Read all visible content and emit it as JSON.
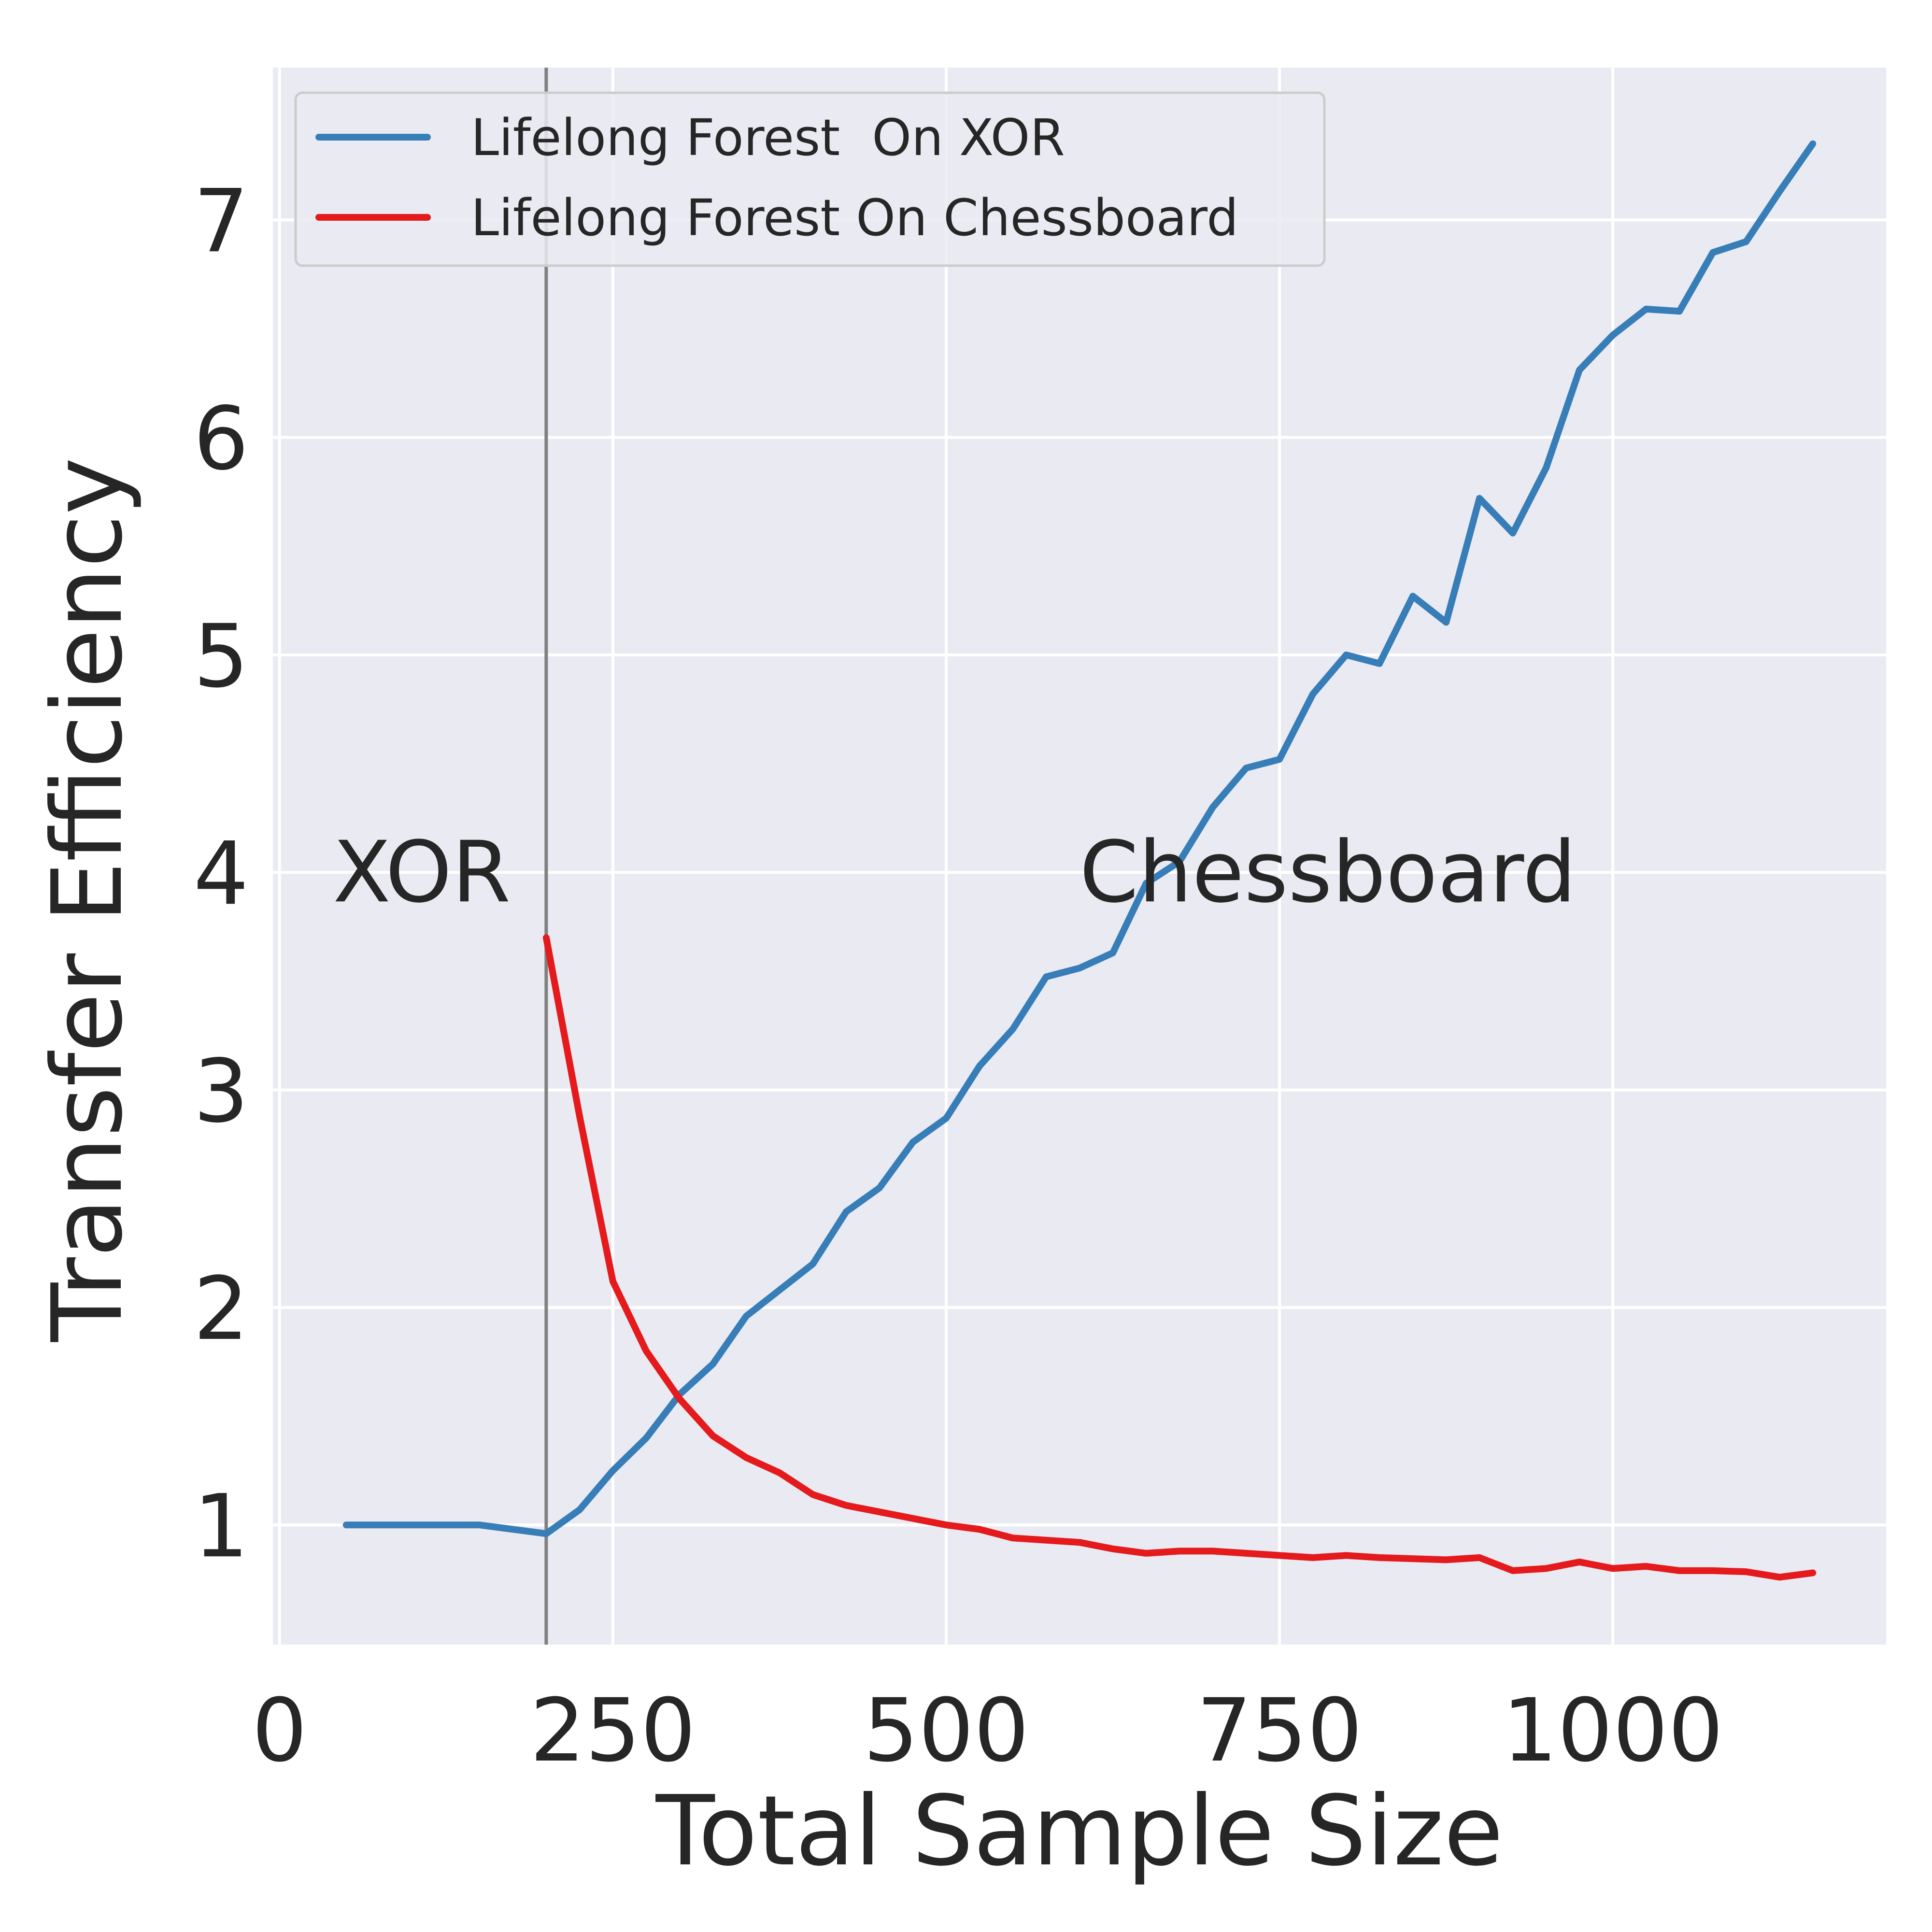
{
  "chart_data": {
    "type": "line",
    "xlabel": "Total Sample Size",
    "ylabel": "Transfer Efficiency",
    "xlim": [
      -5,
      1205
    ],
    "ylim": [
      0.45,
      7.7
    ],
    "xticks": [
      0,
      250,
      500,
      750,
      1000
    ],
    "yticks": [
      1,
      2,
      3,
      4,
      5,
      6,
      7
    ],
    "grid": true,
    "legend_position": "top-left",
    "vertical_line_x": 200,
    "annotations": [
      {
        "text": "XOR",
        "x": 40,
        "y": 4
      },
      {
        "text": "Chessboard",
        "x": 600,
        "y": 4
      }
    ],
    "series": [
      {
        "name": "Lifelong Forest  On XOR",
        "color": "#377eb8",
        "x": [
          50,
          75,
          100,
          125,
          150,
          175,
          200,
          225,
          250,
          275,
          300,
          325,
          350,
          375,
          400,
          425,
          450,
          475,
          500,
          525,
          550,
          575,
          600,
          625,
          650,
          675,
          700,
          725,
          750,
          775,
          800,
          825,
          850,
          875,
          900,
          925,
          950,
          975,
          1000,
          1025,
          1050,
          1075,
          1100,
          1125,
          1150
        ],
        "y": [
          1.0,
          1.0,
          1.0,
          1.0,
          1.0,
          0.98,
          0.96,
          1.07,
          1.25,
          1.4,
          1.6,
          1.74,
          1.96,
          2.08,
          2.2,
          2.44,
          2.55,
          2.76,
          2.87,
          3.11,
          3.28,
          3.52,
          3.56,
          3.63,
          3.95,
          4.05,
          4.3,
          4.48,
          4.52,
          4.82,
          5.0,
          4.96,
          5.27,
          5.15,
          5.72,
          5.56,
          5.86,
          6.31,
          6.47,
          6.59,
          6.58,
          6.85,
          6.9,
          7.13,
          7.35
        ]
      },
      {
        "name": "Lifelong Forest On Chessboard",
        "color": "#e41a1c",
        "x": [
          200,
          225,
          250,
          275,
          300,
          325,
          350,
          375,
          400,
          425,
          450,
          475,
          500,
          525,
          550,
          575,
          600,
          625,
          650,
          675,
          700,
          725,
          750,
          775,
          800,
          825,
          850,
          875,
          900,
          925,
          950,
          975,
          1000,
          1025,
          1050,
          1075,
          1100,
          1125,
          1150
        ],
        "y": [
          3.7,
          2.88,
          2.12,
          1.8,
          1.58,
          1.41,
          1.31,
          1.24,
          1.14,
          1.09,
          1.06,
          1.03,
          1.0,
          0.98,
          0.94,
          0.93,
          0.92,
          0.89,
          0.87,
          0.88,
          0.88,
          0.87,
          0.86,
          0.85,
          0.86,
          0.85,
          0.845,
          0.84,
          0.85,
          0.79,
          0.8,
          0.83,
          0.8,
          0.81,
          0.79,
          0.79,
          0.785,
          0.76,
          0.78
        ]
      }
    ]
  }
}
